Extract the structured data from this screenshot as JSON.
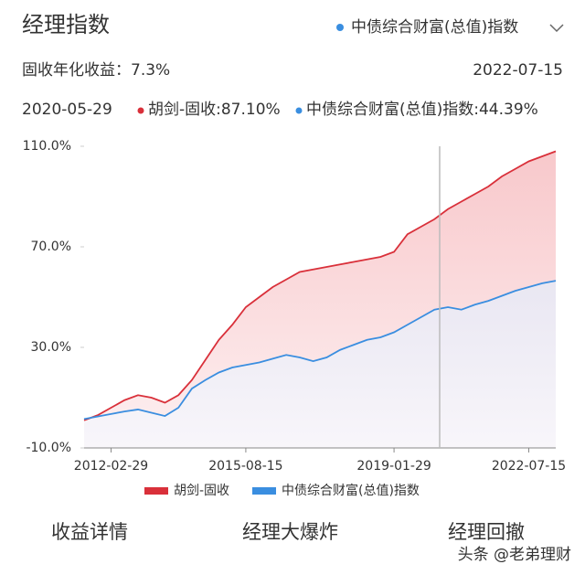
{
  "header": {
    "title": "经理指数",
    "index_select": "中债综合财富(总值)指数",
    "annual_return": "固收年化收益：7.3%",
    "end_date": "2022-07-15",
    "cursor_date": "2020-05-29",
    "cursor_manager": "胡剑-固收:87.10%",
    "cursor_index": "中债综合财富(总值)指数:44.39%"
  },
  "chart_data": {
    "type": "line",
    "categories": [
      null,
      null,
      "2012-02-29",
      null,
      null,
      null,
      null,
      null,
      null,
      null,
      null,
      null,
      "2015-08-15",
      null,
      null,
      null,
      null,
      null,
      null,
      null,
      null,
      null,
      null,
      "2019-01-29",
      null,
      null,
      null,
      null,
      null,
      null,
      null,
      null,
      null,
      "2022-07-15",
      null,
      null
    ],
    "series": [
      {
        "name": "胡剑-固收",
        "color": "#d9303a",
        "values": [
          1,
          3,
          6,
          9,
          11,
          10,
          8,
          11,
          17,
          25,
          33,
          39,
          46,
          50,
          54,
          57,
          60,
          61,
          62,
          63,
          64,
          65,
          66,
          68,
          75,
          78,
          81,
          85,
          88,
          91,
          94,
          98,
          101,
          104,
          106,
          108
        ]
      },
      {
        "name": "中债综合财富(总值)指数",
        "color": "#3a8ee0",
        "values": [
          1.5,
          2.5,
          3.5,
          4.5,
          5.3,
          4,
          2.7,
          6,
          13.6,
          17,
          20,
          22,
          23,
          24,
          25.5,
          27,
          26,
          24.5,
          26,
          29,
          31,
          33,
          34,
          36,
          39,
          42,
          45,
          46,
          45,
          47,
          48.5,
          50.5,
          52.5,
          54,
          55.5,
          56.5
        ]
      }
    ],
    "ylim": [
      -10,
      110
    ],
    "yticks": [
      {
        "value": -10,
        "label": "-10.0%"
      },
      {
        "value": 30,
        "label": "30.0%"
      },
      {
        "value": 70,
        "label": "70.0%"
      },
      {
        "value": 110,
        "label": "110.0%"
      }
    ],
    "legend": "bottom"
  },
  "tabs": [
    "收益详情",
    "经理大爆炸",
    "经理回撤"
  ],
  "footer": "头条 @老弟理财"
}
